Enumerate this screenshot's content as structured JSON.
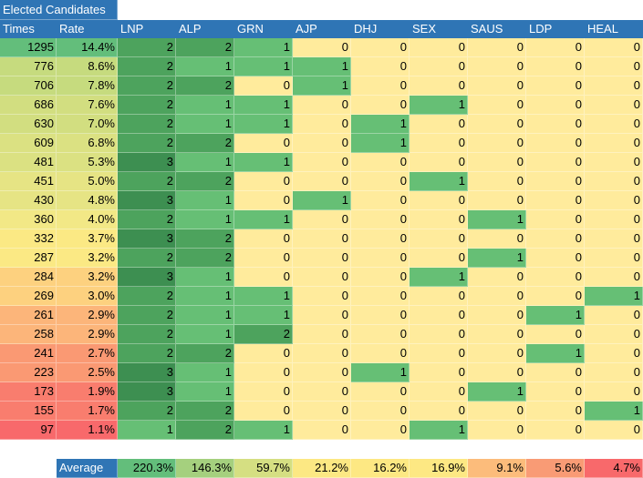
{
  "title": "Elected Candidates",
  "headers": [
    "Times",
    "Rate",
    "LNP",
    "ALP",
    "GRN",
    "AJP",
    "DHJ",
    "SEX",
    "SAUS",
    "LDP",
    "HEAL"
  ],
  "rows": [
    {
      "times": "1295",
      "rate": "14.4%",
      "v": [
        2,
        2,
        1,
        0,
        0,
        0,
        0,
        0,
        0
      ]
    },
    {
      "times": "776",
      "rate": "8.6%",
      "v": [
        2,
        1,
        1,
        1,
        0,
        0,
        0,
        0,
        0
      ]
    },
    {
      "times": "706",
      "rate": "7.8%",
      "v": [
        2,
        2,
        0,
        1,
        0,
        0,
        0,
        0,
        0
      ]
    },
    {
      "times": "686",
      "rate": "7.6%",
      "v": [
        2,
        1,
        1,
        0,
        0,
        1,
        0,
        0,
        0
      ]
    },
    {
      "times": "630",
      "rate": "7.0%",
      "v": [
        2,
        1,
        1,
        0,
        1,
        0,
        0,
        0,
        0
      ]
    },
    {
      "times": "609",
      "rate": "6.8%",
      "v": [
        2,
        2,
        0,
        0,
        1,
        0,
        0,
        0,
        0
      ]
    },
    {
      "times": "481",
      "rate": "5.3%",
      "v": [
        3,
        1,
        1,
        0,
        0,
        0,
        0,
        0,
        0
      ]
    },
    {
      "times": "451",
      "rate": "5.0%",
      "v": [
        2,
        2,
        0,
        0,
        0,
        1,
        0,
        0,
        0
      ]
    },
    {
      "times": "430",
      "rate": "4.8%",
      "v": [
        3,
        1,
        0,
        1,
        0,
        0,
        0,
        0,
        0
      ]
    },
    {
      "times": "360",
      "rate": "4.0%",
      "v": [
        2,
        1,
        1,
        0,
        0,
        0,
        1,
        0,
        0
      ]
    },
    {
      "times": "332",
      "rate": "3.7%",
      "v": [
        3,
        2,
        0,
        0,
        0,
        0,
        0,
        0,
        0
      ]
    },
    {
      "times": "287",
      "rate": "3.2%",
      "v": [
        2,
        2,
        0,
        0,
        0,
        0,
        1,
        0,
        0
      ]
    },
    {
      "times": "284",
      "rate": "3.2%",
      "v": [
        3,
        1,
        0,
        0,
        0,
        1,
        0,
        0,
        0
      ]
    },
    {
      "times": "269",
      "rate": "3.0%",
      "v": [
        2,
        1,
        1,
        0,
        0,
        0,
        0,
        0,
        1
      ]
    },
    {
      "times": "261",
      "rate": "2.9%",
      "v": [
        2,
        1,
        1,
        0,
        0,
        0,
        0,
        1,
        0
      ]
    },
    {
      "times": "258",
      "rate": "2.9%",
      "v": [
        2,
        1,
        2,
        0,
        0,
        0,
        0,
        0,
        0
      ]
    },
    {
      "times": "241",
      "rate": "2.7%",
      "v": [
        2,
        2,
        0,
        0,
        0,
        0,
        0,
        1,
        0
      ]
    },
    {
      "times": "223",
      "rate": "2.5%",
      "v": [
        3,
        1,
        0,
        0,
        1,
        0,
        0,
        0,
        0
      ]
    },
    {
      "times": "173",
      "rate": "1.9%",
      "v": [
        3,
        1,
        0,
        0,
        0,
        0,
        1,
        0,
        0
      ]
    },
    {
      "times": "155",
      "rate": "1.7%",
      "v": [
        2,
        2,
        0,
        0,
        0,
        0,
        0,
        0,
        1
      ]
    },
    {
      "times": "97",
      "rate": "1.1%",
      "v": [
        1,
        2,
        1,
        0,
        0,
        1,
        0,
        0,
        0
      ]
    }
  ],
  "average": {
    "label": "Average",
    "values": [
      "220.3%",
      "146.3%",
      "59.7%",
      "21.2%",
      "16.2%",
      "16.9%",
      "9.1%",
      "5.6%",
      "4.7%"
    ]
  },
  "colors": {
    "header_blue": "#2f75b5",
    "value_3": "#3d8f51",
    "value_2": "#4da35d",
    "value_1": "#66bf75",
    "value_0": "#ffeb9c",
    "times_rate_scale": [
      "#b8d67a",
      "#c6db7e",
      "#d2de80",
      "#dbe182",
      "#e6e484",
      "#f2e886",
      "#fbe984",
      "#fdd17f",
      "#fcb57a",
      "#fa9973",
      "#f97d6e",
      "#f8696b"
    ],
    "average_colors": [
      "#63be7b",
      "#a5d07e",
      "#d5df82",
      "#fce883",
      "#fde883",
      "#fde883",
      "#fcbc7b",
      "#f99b75",
      "#f8696b"
    ]
  }
}
